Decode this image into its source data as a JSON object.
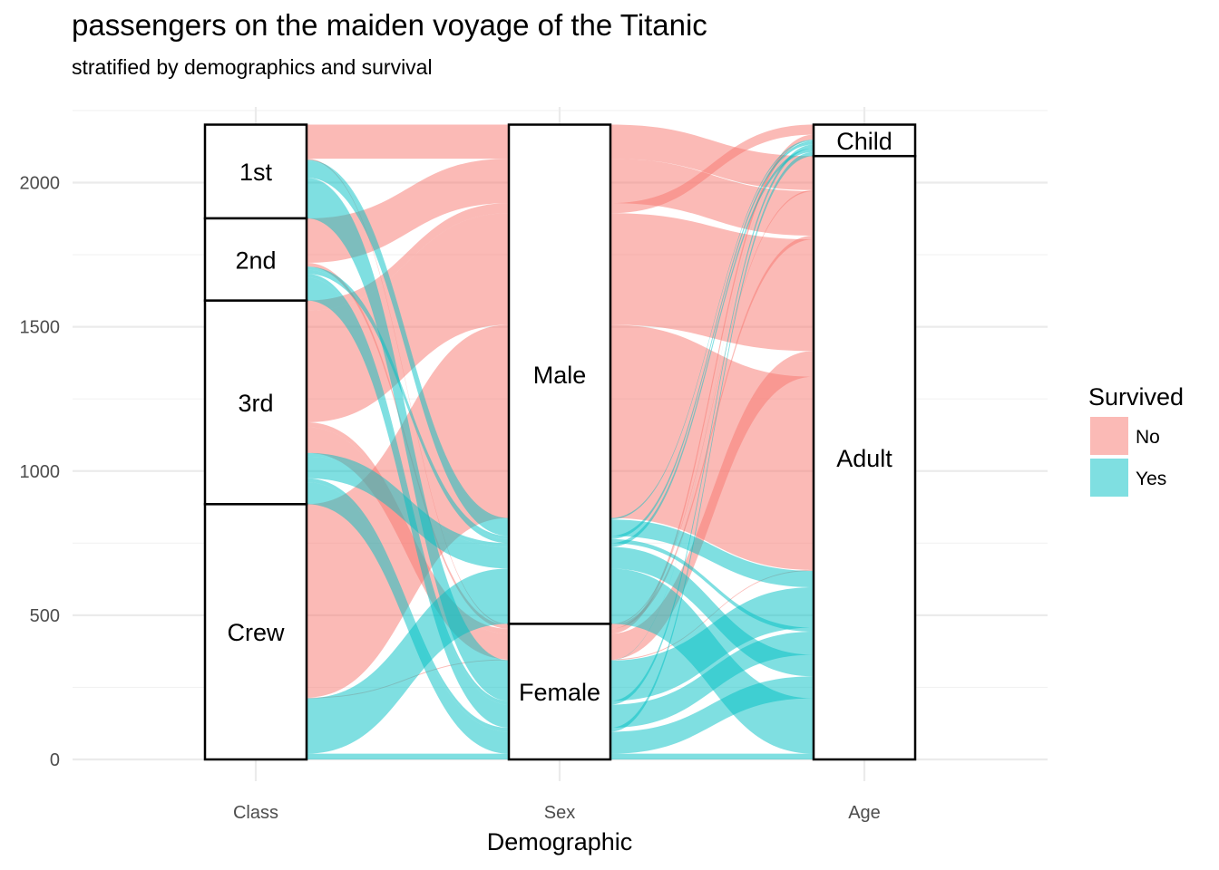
{
  "chart_data": {
    "type": "alluvial",
    "title": "passengers on the maiden voyage of the Titanic",
    "subtitle": "stratified by demographics and survival",
    "xlabel": "Demographic",
    "ylabel": "",
    "axes": [
      "Class",
      "Sex",
      "Age"
    ],
    "ylim": [
      0,
      2201
    ],
    "y_breaks": [
      0,
      500,
      1000,
      1500,
      2000
    ],
    "grid": true,
    "legend_position": "right",
    "legend": {
      "title": "Survived",
      "items": [
        {
          "key": "No",
          "label": "No",
          "color": "#F8766D"
        },
        {
          "key": "Yes",
          "label": "Yes",
          "color": "#00BFC4"
        }
      ]
    },
    "strata": {
      "Class": [
        "1st",
        "2nd",
        "3rd",
        "Crew"
      ],
      "Sex": [
        "Male",
        "Female"
      ],
      "Age": [
        "Child",
        "Adult"
      ]
    },
    "alluvia": [
      {
        "Class": "1st",
        "Sex": "Male",
        "Age": "Child",
        "Survived": "No",
        "count": 0
      },
      {
        "Class": "2nd",
        "Sex": "Male",
        "Age": "Child",
        "Survived": "No",
        "count": 0
      },
      {
        "Class": "3rd",
        "Sex": "Male",
        "Age": "Child",
        "Survived": "No",
        "count": 35
      },
      {
        "Class": "Crew",
        "Sex": "Male",
        "Age": "Child",
        "Survived": "No",
        "count": 0
      },
      {
        "Class": "1st",
        "Sex": "Female",
        "Age": "Child",
        "Survived": "No",
        "count": 0
      },
      {
        "Class": "2nd",
        "Sex": "Female",
        "Age": "Child",
        "Survived": "No",
        "count": 0
      },
      {
        "Class": "3rd",
        "Sex": "Female",
        "Age": "Child",
        "Survived": "No",
        "count": 17
      },
      {
        "Class": "Crew",
        "Sex": "Female",
        "Age": "Child",
        "Survived": "No",
        "count": 0
      },
      {
        "Class": "1st",
        "Sex": "Male",
        "Age": "Adult",
        "Survived": "No",
        "count": 118
      },
      {
        "Class": "2nd",
        "Sex": "Male",
        "Age": "Adult",
        "Survived": "No",
        "count": 154
      },
      {
        "Class": "3rd",
        "Sex": "Male",
        "Age": "Adult",
        "Survived": "No",
        "count": 387
      },
      {
        "Class": "Crew",
        "Sex": "Male",
        "Age": "Adult",
        "Survived": "No",
        "count": 670
      },
      {
        "Class": "1st",
        "Sex": "Female",
        "Age": "Adult",
        "Survived": "No",
        "count": 4
      },
      {
        "Class": "2nd",
        "Sex": "Female",
        "Age": "Adult",
        "Survived": "No",
        "count": 13
      },
      {
        "Class": "3rd",
        "Sex": "Female",
        "Age": "Adult",
        "Survived": "No",
        "count": 89
      },
      {
        "Class": "Crew",
        "Sex": "Female",
        "Age": "Adult",
        "Survived": "No",
        "count": 3
      },
      {
        "Class": "1st",
        "Sex": "Male",
        "Age": "Child",
        "Survived": "Yes",
        "count": 5
      },
      {
        "Class": "2nd",
        "Sex": "Male",
        "Age": "Child",
        "Survived": "Yes",
        "count": 11
      },
      {
        "Class": "3rd",
        "Sex": "Male",
        "Age": "Child",
        "Survived": "Yes",
        "count": 13
      },
      {
        "Class": "Crew",
        "Sex": "Male",
        "Age": "Child",
        "Survived": "Yes",
        "count": 0
      },
      {
        "Class": "1st",
        "Sex": "Female",
        "Age": "Child",
        "Survived": "Yes",
        "count": 1
      },
      {
        "Class": "2nd",
        "Sex": "Female",
        "Age": "Child",
        "Survived": "Yes",
        "count": 13
      },
      {
        "Class": "3rd",
        "Sex": "Female",
        "Age": "Child",
        "Survived": "Yes",
        "count": 14
      },
      {
        "Class": "Crew",
        "Sex": "Female",
        "Age": "Child",
        "Survived": "Yes",
        "count": 0
      },
      {
        "Class": "1st",
        "Sex": "Male",
        "Age": "Adult",
        "Survived": "Yes",
        "count": 57
      },
      {
        "Class": "2nd",
        "Sex": "Male",
        "Age": "Adult",
        "Survived": "Yes",
        "count": 14
      },
      {
        "Class": "3rd",
        "Sex": "Male",
        "Age": "Adult",
        "Survived": "Yes",
        "count": 75
      },
      {
        "Class": "Crew",
        "Sex": "Male",
        "Age": "Adult",
        "Survived": "Yes",
        "count": 192
      },
      {
        "Class": "1st",
        "Sex": "Female",
        "Age": "Adult",
        "Survived": "Yes",
        "count": 140
      },
      {
        "Class": "2nd",
        "Sex": "Female",
        "Age": "Adult",
        "Survived": "Yes",
        "count": 80
      },
      {
        "Class": "3rd",
        "Sex": "Female",
        "Age": "Adult",
        "Survived": "Yes",
        "count": 76
      },
      {
        "Class": "Crew",
        "Sex": "Female",
        "Age": "Adult",
        "Survived": "Yes",
        "count": 20
      }
    ]
  }
}
